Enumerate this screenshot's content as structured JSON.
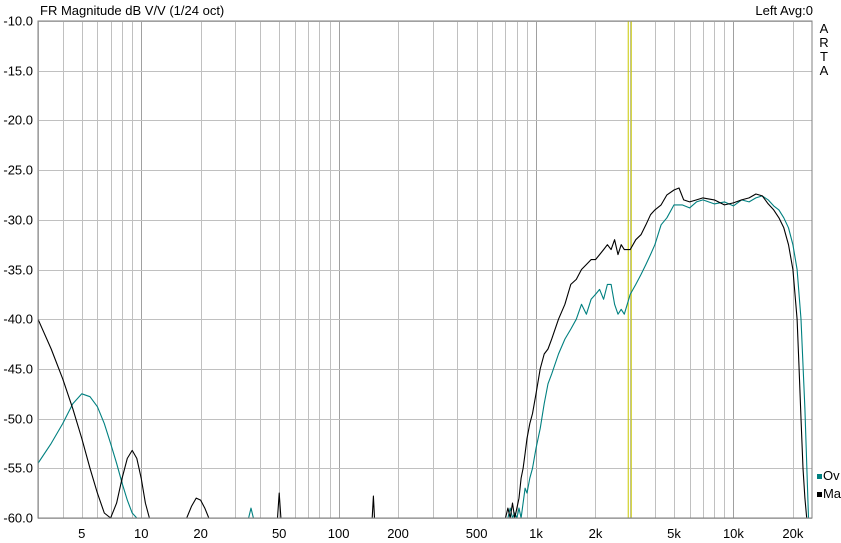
{
  "header": {
    "title": "FR Magnitude dB V/V (1/24 oct)",
    "status": "Left  Avg:0",
    "side_label": "ARTA"
  },
  "legend": [
    {
      "label": "Ov",
      "color": "#008080"
    },
    {
      "label": "Ma",
      "color": "#000000"
    }
  ],
  "colors": {
    "grid": "#c0c0c0",
    "grid_major": "#a0a0a0",
    "cursor": "#c8c800"
  },
  "chart_data": {
    "type": "line",
    "title": "FR Magnitude dB V/V (1/24 oct)",
    "xscale": "log",
    "xlim": [
      3,
      25000
    ],
    "ylim": [
      -60,
      -10
    ],
    "grid": true,
    "legend_position": "bottom-right",
    "y_ticks": [
      "-10.0",
      "-15.0",
      "-20.0",
      "-25.0",
      "-30.0",
      "-35.0",
      "-40.0",
      "-45.0",
      "-50.0",
      "-55.0",
      "-60.0"
    ],
    "x_ticks": [
      {
        "value": 5,
        "label": "5"
      },
      {
        "value": 10,
        "label": "10"
      },
      {
        "value": 20,
        "label": "20"
      },
      {
        "value": 50,
        "label": "50"
      },
      {
        "value": 100,
        "label": "100"
      },
      {
        "value": 200,
        "label": "200"
      },
      {
        "value": 500,
        "label": "500"
      },
      {
        "value": 1000,
        "label": "1k"
      },
      {
        "value": 2000,
        "label": "2k"
      },
      {
        "value": 5000,
        "label": "5k"
      },
      {
        "value": 10000,
        "label": "10k"
      },
      {
        "value": 20000,
        "label": "20k"
      }
    ],
    "cursor_x": 3000,
    "series": [
      {
        "name": "Ov",
        "color": "#008080",
        "x": [
          3,
          3.5,
          4,
          4.5,
          5,
          5.5,
          6,
          6.5,
          7,
          7.5,
          8,
          8.5,
          9,
          9.5,
          10,
          10.5,
          null,
          35,
          36,
          37,
          null,
          700,
          720,
          740,
          760,
          780,
          800,
          820,
          840,
          860,
          880,
          900,
          930,
          960,
          1000,
          1050,
          1100,
          1150,
          1200,
          1300,
          1400,
          1500,
          1600,
          1700,
          1800,
          1900,
          2000,
          2100,
          2200,
          2300,
          2400,
          2500,
          2600,
          2700,
          2800,
          3000,
          3200,
          3400,
          3600,
          3800,
          4000,
          4300,
          4600,
          5000,
          5500,
          6000,
          6500,
          7000,
          8000,
          9000,
          10000,
          11000,
          12000,
          13000,
          14000,
          15000,
          16000,
          17000,
          18000,
          19000,
          20000,
          21000,
          22000,
          23000,
          24000
        ],
        "y": [
          -54.5,
          -52.5,
          -50.5,
          -48.5,
          -47.5,
          -47.8,
          -48.8,
          -50.5,
          -52.5,
          -54.5,
          -56.5,
          -58.2,
          -59.5,
          -60,
          -60,
          -60,
          null,
          -60,
          -59.0,
          -60,
          null,
          -60,
          -60,
          -59.0,
          -60,
          -59.5,
          -60,
          -59.0,
          -60,
          -58.5,
          -57.0,
          -57.5,
          -56.0,
          -55.0,
          -53.0,
          -51.0,
          -48.5,
          -46.5,
          -45.5,
          -43.5,
          -42.0,
          -41.0,
          -40.0,
          -38.5,
          -39.5,
          -38.0,
          -37.5,
          -37.0,
          -38.0,
          -36.5,
          -36.5,
          -38.5,
          -39.5,
          -39.0,
          -39.5,
          -37.5,
          -36.5,
          -35.5,
          -34.5,
          -33.5,
          -32.5,
          -30.5,
          -29.8,
          -28.5,
          -28.5,
          -28.8,
          -28.2,
          -28.0,
          -28.4,
          -28.2,
          -28.6,
          -28.0,
          -28.2,
          -27.8,
          -27.6,
          -28.0,
          -28.6,
          -29.0,
          -29.8,
          -30.8,
          -32.5,
          -35.0,
          -40.0,
          -49.0,
          -60
        ]
      },
      {
        "name": "Ma",
        "color": "#000000",
        "x": [
          3,
          3.5,
          4,
          4.5,
          5,
          5.5,
          6,
          6.5,
          7,
          7.5,
          8,
          8.5,
          9,
          9.5,
          10,
          10.5,
          11,
          null,
          17,
          18,
          19,
          20,
          21,
          22,
          23,
          null,
          49,
          50,
          51,
          null,
          148,
          150,
          152,
          null,
          680,
          700,
          720,
          740,
          760,
          780,
          800,
          820,
          840,
          860,
          880,
          900,
          930,
          960,
          1000,
          1050,
          1100,
          1150,
          1200,
          1300,
          1400,
          1500,
          1600,
          1700,
          1800,
          1900,
          2000,
          2100,
          2200,
          2300,
          2400,
          2500,
          2600,
          2700,
          2800,
          3000,
          3200,
          3400,
          3600,
          3800,
          4000,
          4300,
          4600,
          5000,
          5300,
          5600,
          6000,
          6500,
          7000,
          8000,
          9000,
          10000,
          11000,
          12000,
          13000,
          14000,
          15000,
          16000,
          17000,
          18000,
          19000,
          20000,
          21000,
          21500,
          22000,
          22500,
          23000,
          23500,
          24000
        ],
        "y": [
          -40.0,
          -43.0,
          -46.0,
          -49.0,
          -52.0,
          -55.0,
          -57.5,
          -59.5,
          -60,
          -58.5,
          -56.0,
          -54.0,
          -53.2,
          -54.0,
          -56.0,
          -58.5,
          -60,
          null,
          -60,
          -58.8,
          -58.0,
          -58.2,
          -59.0,
          -60,
          -60,
          null,
          -60,
          -57.5,
          -60,
          null,
          -60,
          -57.8,
          -60,
          null,
          -60,
          -60,
          -59.0,
          -60,
          -58.5,
          -60,
          -59.0,
          -58.0,
          -56.0,
          -55.0,
          -53.5,
          -52.0,
          -50.5,
          -49.5,
          -47.5,
          -45.0,
          -43.5,
          -43.0,
          -42.0,
          -40.0,
          -38.5,
          -36.5,
          -36.0,
          -35.0,
          -34.5,
          -34.0,
          -34.0,
          -33.5,
          -33.0,
          -32.5,
          -33.0,
          -32.0,
          -33.5,
          -32.5,
          -33.0,
          -33.0,
          -32.0,
          -31.5,
          -30.5,
          -29.5,
          -29.0,
          -28.5,
          -27.5,
          -27.0,
          -26.8,
          -28.0,
          -28.2,
          -28.0,
          -27.8,
          -28.0,
          -28.5,
          -28.3,
          -28.0,
          -27.8,
          -27.4,
          -27.6,
          -28.4,
          -29.0,
          -29.8,
          -30.8,
          -32.5,
          -35.0,
          -40.0,
          -45.0,
          -50.0,
          -55.0,
          -58.0,
          -60,
          -60
        ]
      }
    ]
  }
}
